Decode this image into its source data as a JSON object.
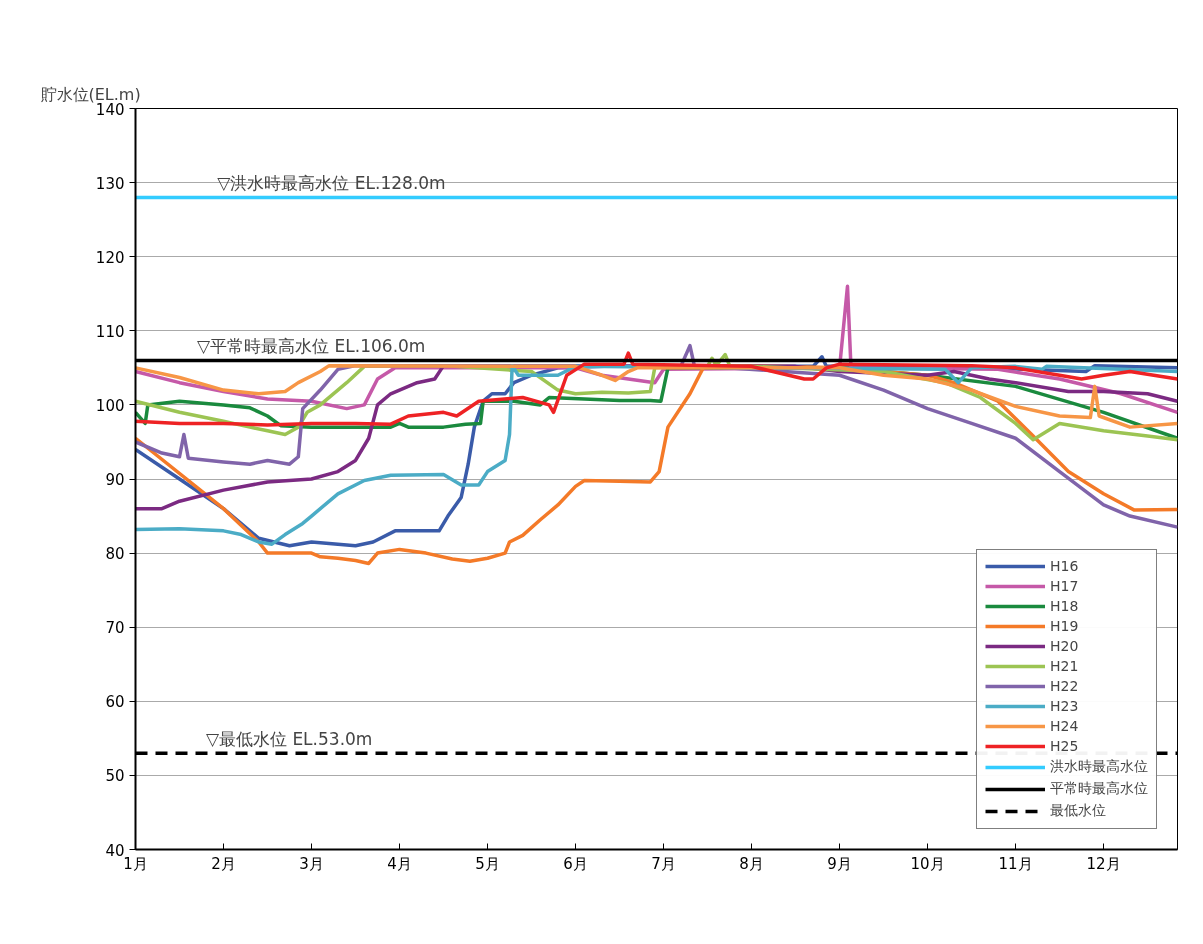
{
  "chart_data": {
    "type": "line",
    "ylabel": "貯水位(EL.m)",
    "xlim": [
      1,
      12.84
    ],
    "ylim": [
      40,
      140
    ],
    "xticks": [
      {
        "value": 1,
        "label": "1月"
      },
      {
        "value": 2,
        "label": "2月"
      },
      {
        "value": 3,
        "label": "3月"
      },
      {
        "value": 4,
        "label": "4月"
      },
      {
        "value": 5,
        "label": "5月"
      },
      {
        "value": 6,
        "label": "6月"
      },
      {
        "value": 7,
        "label": "7月"
      },
      {
        "value": 8,
        "label": "8月"
      },
      {
        "value": 9,
        "label": "9月"
      },
      {
        "value": 10,
        "label": "10月"
      },
      {
        "value": 11,
        "label": "11月"
      },
      {
        "value": 12,
        "label": "12月"
      }
    ],
    "yticks": [
      40,
      50,
      60,
      70,
      80,
      90,
      100,
      110,
      120,
      130,
      140
    ],
    "grid": "y",
    "legend": "bottom right",
    "line_style": "solid",
    "annotations": [
      {
        "text": "▽洪水時最高水位 EL.128.0m",
        "x": 1.93,
        "y": 128
      },
      {
        "text": "▽平常時最高水位 EL.106.0m",
        "x": 1.7,
        "y": 106
      },
      {
        "text": "▽最低水位 EL.53.0m",
        "x": 1.8,
        "y": 53
      }
    ],
    "series": [
      {
        "name": "H16",
        "color": "#3a5ba9",
        "x": [
          1,
          1.5,
          2,
          2.4,
          2.75,
          3.0,
          3.5,
          3.7,
          3.95,
          4.45,
          4.55,
          4.7,
          4.78,
          4.85,
          4.95,
          5.05,
          5.2,
          5.3,
          5.5,
          5.8,
          6.5,
          8.7,
          8.8,
          8.85,
          10,
          11.8,
          11.9,
          12.84
        ],
        "values": [
          94,
          90,
          86,
          82,
          81,
          81.5,
          81,
          81.5,
          83,
          83,
          85,
          87.5,
          92,
          97,
          100.5,
          101.5,
          101.5,
          103,
          104,
          105,
          105.3,
          105.2,
          106.5,
          105.2,
          105.3,
          104.5,
          105.3,
          105
        ]
      },
      {
        "name": "H17",
        "color": "#c559a8",
        "x": [
          1,
          1.5,
          2,
          2.5,
          3,
          3.4,
          3.6,
          3.75,
          3.95,
          6.0,
          6.3,
          6.9,
          7.0,
          9.0,
          9.09,
          9.13,
          10.8,
          11.5,
          12.2,
          12.84
        ],
        "values": [
          104.5,
          103,
          101.8,
          100.8,
          100.5,
          99.5,
          100,
          103.5,
          105,
          105,
          104,
          103,
          104.8,
          105,
          116,
          105,
          104.8,
          103.5,
          101.5,
          99
        ]
      },
      {
        "name": "H18",
        "color": "#1a8a3e",
        "x": [
          1,
          1.11,
          1.14,
          1.5,
          2.0,
          2.3,
          2.5,
          2.65,
          3.0,
          3.5,
          3.9,
          4.0,
          4.1,
          4.5,
          4.75,
          4.92,
          4.95,
          5.3,
          5.6,
          5.7,
          6.5,
          6.85,
          6.97,
          7.05,
          9,
          10,
          11,
          12,
          12.84
        ],
        "values": [
          99,
          97.5,
          100,
          100.5,
          100,
          99.6,
          98.5,
          97.2,
          97,
          97,
          97,
          97.5,
          97,
          97,
          97.4,
          97.5,
          100.5,
          100.5,
          100,
          101,
          100.6,
          100.6,
          100.5,
          105,
          105,
          104,
          102.5,
          99,
          95.5
        ]
      },
      {
        "name": "H19",
        "color": "#f47a28",
        "x": [
          1,
          2.0,
          2.4,
          2.5,
          3.0,
          3.1,
          3.3,
          3.5,
          3.65,
          3.75,
          4.0,
          4.3,
          4.6,
          4.8,
          5.0,
          5.2,
          5.25,
          5.4,
          5.6,
          5.8,
          6.0,
          6.1,
          6.5,
          6.85,
          6.95,
          7.05,
          7.3,
          7.45,
          8,
          9,
          10,
          10.3,
          10.8,
          11.2,
          11.6,
          12.0,
          12.35,
          12.84
        ],
        "values": [
          95.5,
          86,
          81.5,
          80,
          80,
          79.5,
          79.3,
          79,
          78.6,
          80,
          80.5,
          80,
          79.2,
          78.9,
          79.3,
          80,
          81.5,
          82.4,
          84.5,
          86.5,
          89,
          89.8,
          89.7,
          89.6,
          91,
          97,
          101.5,
          105,
          105.3,
          105,
          104,
          103,
          100.5,
          95.8,
          91,
          88,
          85.8,
          85.9
        ]
      },
      {
        "name": "H20",
        "color": "#7b2a82",
        "x": [
          1,
          1.3,
          1.5,
          2.0,
          2.5,
          3.0,
          3.3,
          3.5,
          3.65,
          3.75,
          3.9,
          4.2,
          4.4,
          4.5,
          8.5,
          9,
          10,
          10.3,
          10.7,
          11,
          11.6,
          12,
          12.5,
          12.84
        ],
        "values": [
          86,
          86,
          87,
          88.5,
          89.6,
          90,
          91,
          92.5,
          95.5,
          100,
          101.5,
          103,
          103.5,
          105.3,
          105.2,
          104.5,
          104,
          104.5,
          103.5,
          103,
          101.8,
          101.8,
          101.5,
          100.5
        ]
      },
      {
        "name": "H21",
        "color": "#9cc453",
        "x": [
          1,
          1.5,
          2,
          2.3,
          2.5,
          2.7,
          2.85,
          2.95,
          3.1,
          3.4,
          3.6,
          4.5,
          5.5,
          5.8,
          6.0,
          6.3,
          6.6,
          6.85,
          6.9,
          7.5,
          7.55,
          7.6,
          7.7,
          7.75,
          9.5,
          10.2,
          10.6,
          11.0,
          11.2,
          11.5,
          12,
          12.5,
          12.84
        ],
        "values": [
          100.5,
          99,
          97.8,
          97,
          96.5,
          96,
          97,
          99,
          100,
          103,
          105.2,
          105.3,
          104.5,
          102,
          101.5,
          101.7,
          101.6,
          101.8,
          105,
          105.2,
          106.3,
          105.3,
          106.8,
          105.3,
          104.5,
          103,
          101,
          97.5,
          95.3,
          97.5,
          96.5,
          95.8,
          95.3
        ]
      },
      {
        "name": "H22",
        "color": "#8064aa",
        "x": [
          1,
          1.3,
          1.5,
          1.55,
          1.6,
          2,
          2.3,
          2.5,
          2.75,
          2.85,
          2.9,
          3.1,
          3.3,
          3.5,
          7.2,
          7.3,
          7.35,
          9,
          9.5,
          10,
          10.5,
          11,
          11.5,
          12,
          12.3,
          12.84
        ],
        "values": [
          95,
          93.5,
          93,
          96,
          92.8,
          92.3,
          92,
          92.5,
          92,
          93,
          99.5,
          102,
          104.8,
          105.3,
          105.3,
          108,
          105.3,
          104,
          102,
          99.5,
          97.5,
          95.5,
          91,
          86.5,
          85,
          83.5
        ]
      },
      {
        "name": "H23",
        "color": "#4bacc6",
        "x": [
          1,
          1.5,
          2,
          2.2,
          2.4,
          2.55,
          2.7,
          2.9,
          3.0,
          3.3,
          3.6,
          3.9,
          4.5,
          4.7,
          4.9,
          5.0,
          5.2,
          5.25,
          5.28,
          5.35,
          5.8,
          6.0,
          10.2,
          10.35,
          10.5,
          11.0,
          11.3,
          11.35,
          12.84
        ],
        "values": [
          83.2,
          83.3,
          83,
          82.5,
          81.5,
          81.2,
          82.5,
          84,
          85,
          88,
          89.8,
          90.5,
          90.6,
          89.2,
          89.2,
          91,
          92.5,
          96,
          105.3,
          104,
          104,
          105.2,
          104.8,
          103,
          105,
          105.2,
          104.8,
          105.2,
          104.5
        ]
      },
      {
        "name": "H24",
        "color": "#f79646",
        "x": [
          1,
          1.5,
          2,
          2.4,
          2.7,
          2.85,
          3.1,
          3.2,
          6.0,
          6.3,
          6.45,
          6.6,
          6.7,
          9,
          9.5,
          10.0,
          10.5,
          11,
          11.5,
          11.85,
          11.9,
          11.95,
          12.3,
          12.84
        ],
        "values": [
          105,
          103.7,
          102,
          101.5,
          101.8,
          103,
          104.5,
          105.3,
          105.2,
          104,
          103.3,
          104.5,
          105,
          105,
          104,
          103.5,
          102,
          99.8,
          98.5,
          98.3,
          102.5,
          98.5,
          97,
          97.5
        ]
      },
      {
        "name": "H25",
        "color": "#ee2224",
        "x": [
          1,
          1.5,
          2,
          2.5,
          3.0,
          3.5,
          3.9,
          4.1,
          4.5,
          4.65,
          4.9,
          5.4,
          5.7,
          5.75,
          5.9,
          6.1,
          6.55,
          6.6,
          6.65,
          8.0,
          8.6,
          8.7,
          8.85,
          9.0,
          10.5,
          11.0,
          11.5,
          11.75,
          12.0,
          12.3,
          12.84
        ],
        "values": [
          97.8,
          97.5,
          97.5,
          97.3,
          97.5,
          97.5,
          97.4,
          98.5,
          99,
          98.5,
          100.5,
          101,
          100,
          99,
          104,
          105.5,
          105.5,
          107,
          105.5,
          105.2,
          103.5,
          103.5,
          105,
          105.5,
          105.3,
          105,
          104,
          103.5,
          104,
          104.5,
          103.5
        ]
      },
      {
        "name": "洪水時最高水位",
        "color": "#33ccff",
        "x": [
          1,
          12.84
        ],
        "values": [
          128,
          128
        ]
      },
      {
        "name": "平常時最高水位",
        "color": "#000000",
        "x": [
          1,
          12.84
        ],
        "values": [
          106,
          106
        ]
      },
      {
        "name": "最低水位",
        "color": "#000000",
        "line_style": "dashed",
        "x": [
          1,
          12.84
        ],
        "values": [
          53,
          53
        ]
      }
    ]
  }
}
